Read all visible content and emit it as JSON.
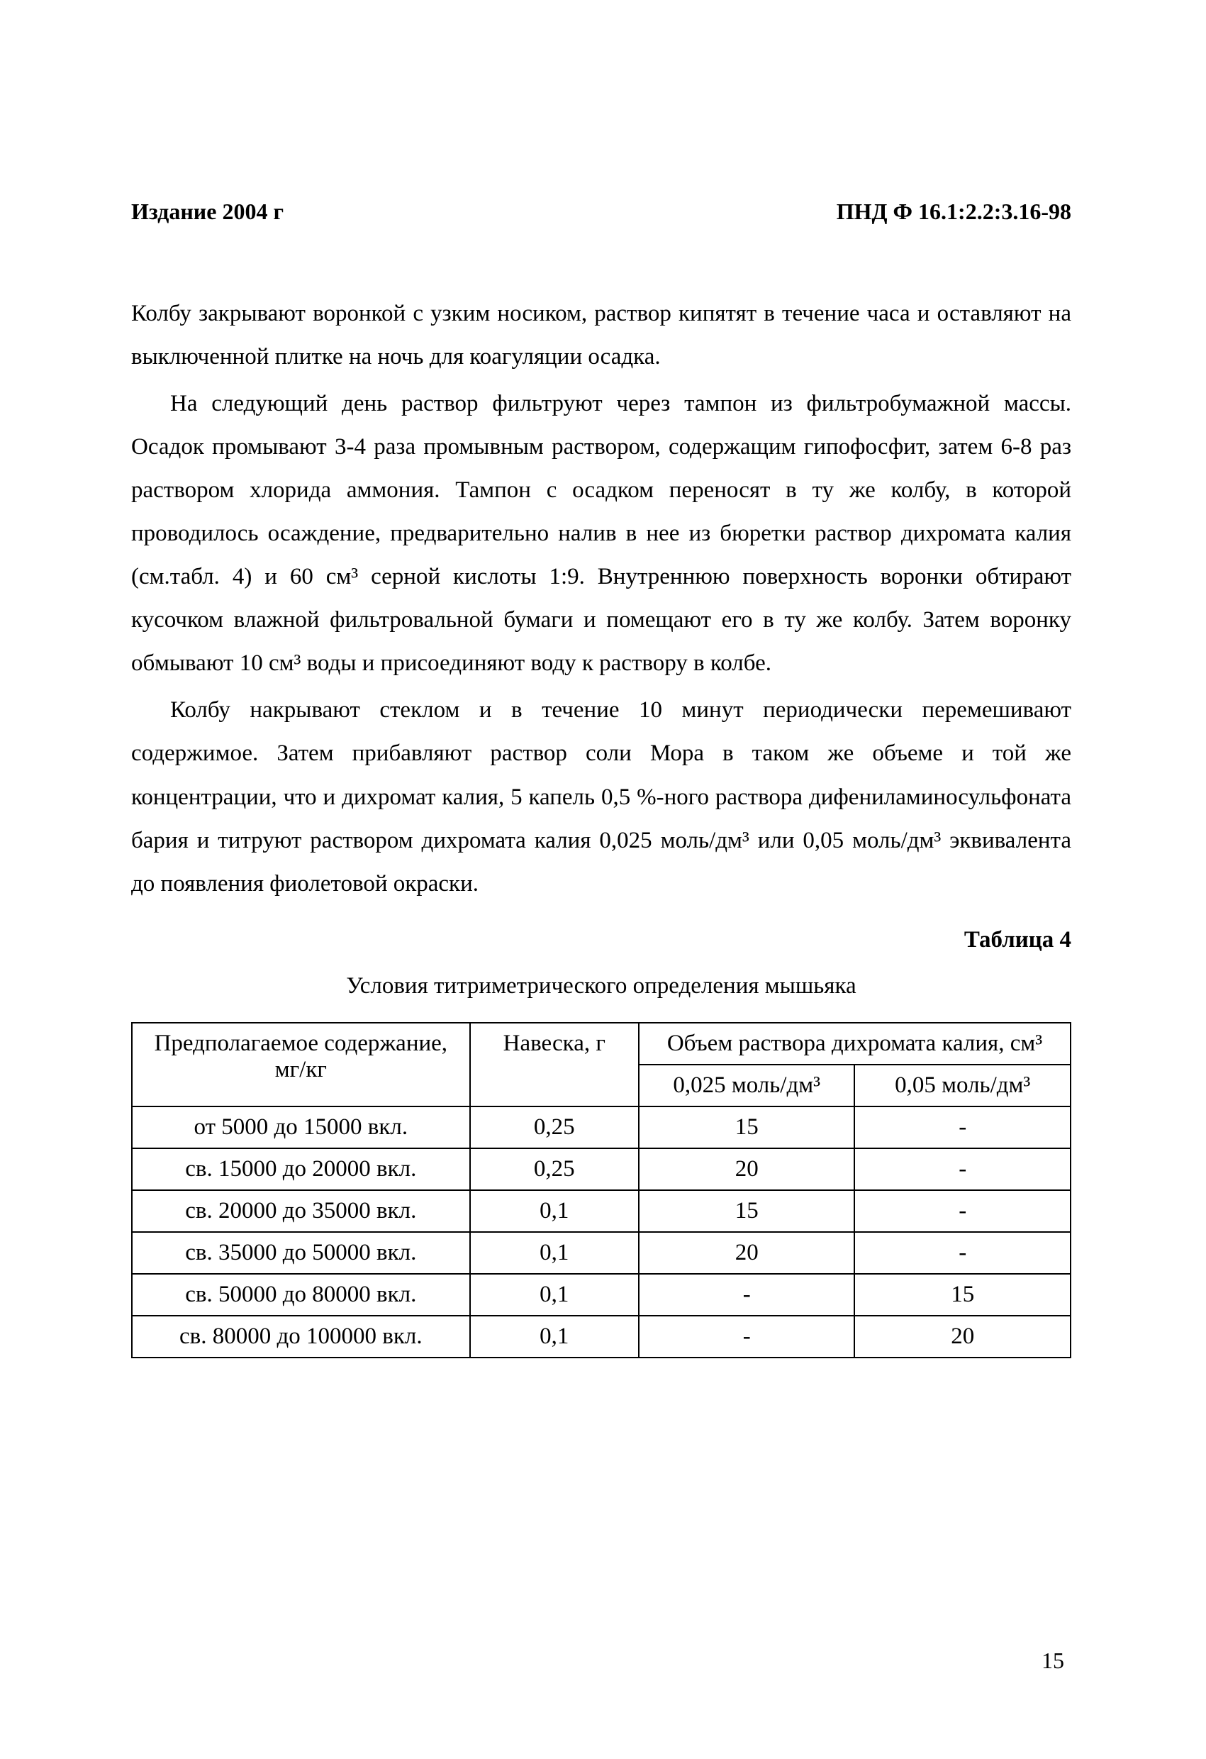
{
  "header": {
    "left": "Издание 2004 г",
    "right": "ПНД Ф 16.1:2.2:3.16-98"
  },
  "paragraphs": {
    "p1": "Колбу закрывают воронкой с узким носиком, раствор кипятят в течение часа и оставляют на выключенной плитке на ночь для коагуляции осадка.",
    "p2": "На следующий день раствор фильтруют через тампон из фильтробумажной массы. Осадок промывают 3-4 раза промывным раствором, содержащим гипофосфит, затем 6-8 раз раствором хлорида аммония. Тампон с осадком переносят в ту же колбу, в которой проводилось осаждение, предварительно налив в нее из бюретки раствор дихромата калия (см.табл. 4) и 60 см³ серной кислоты 1:9. Внутреннюю поверхность воронки обтирают кусочком влажной фильтровальной бумаги и помещают его в ту же колбу. Затем воронку обмывают 10 см³ воды и присоединяют воду к раствору в колбе.",
    "p3": "Колбу накрывают стеклом и в течение 10 минут периодически перемешивают содержимое. Затем прибавляют раствор соли Мора в таком же объеме и той же концентрации, что и дихромат калия, 5 капель 0,5 %-ного раствора дифениламиносульфоната бария и титруют раствором дихромата калия 0,025 моль/дм³ или 0,05 моль/дм³ эквивалента до появления фиолетовой окраски."
  },
  "table": {
    "label": "Таблица 4",
    "caption": "Условия титриметрического определения мышьяка",
    "headers": {
      "col1": "Предполагаемое содержание, мг/кг",
      "col2": "Навеска, г",
      "col3_span": "Объем раствора дихромата калия, см³",
      "col3_sub": "0,025 моль/дм³",
      "col4_sub": "0,05 моль/дм³"
    },
    "rows": [
      {
        "c1": "от 5000 до 15000 вкл.",
        "c2": "0,25",
        "c3": "15",
        "c4": "-"
      },
      {
        "c1": "св. 15000 до 20000 вкл.",
        "c2": "0,25",
        "c3": "20",
        "c4": "-"
      },
      {
        "c1": "св. 20000 до 35000 вкл.",
        "c2": "0,1",
        "c3": "15",
        "c4": "-"
      },
      {
        "c1": "св. 35000 до 50000  вкл.",
        "c2": "0,1",
        "c3": "20",
        "c4": "-"
      },
      {
        "c1": "св. 50000 до 80000 вкл.",
        "c2": "0,1",
        "c3": "-",
        "c4": "15"
      },
      {
        "c1": "св. 80000 до 100000 вкл.",
        "c2": "0,1",
        "c3": "-",
        "c4": "20"
      }
    ]
  },
  "page_number": "15"
}
